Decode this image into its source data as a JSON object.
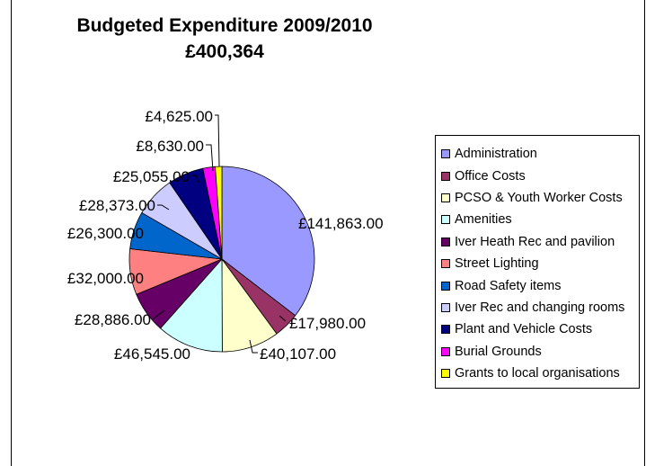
{
  "title": {
    "line1": "Budgeted Expenditure 2009/2010",
    "line2": "£400,364"
  },
  "chart_data": {
    "type": "pie",
    "title": "Budgeted Expenditure 2009/2010 £400,364",
    "legend_position": "right",
    "slices": [
      {
        "name": "Administration",
        "value": 141863.0,
        "label": "£141,863.00",
        "color": "#9999ff"
      },
      {
        "name": "Office Costs",
        "value": 17980.0,
        "label": "£17,980.00",
        "color": "#993366"
      },
      {
        "name": "PCSO & Youth Worker Costs",
        "value": 40107.0,
        "label": "£40,107.00",
        "color": "#ffffcc"
      },
      {
        "name": "Amenities",
        "value": 46545.0,
        "label": "£46,545.00",
        "color": "#ccffff"
      },
      {
        "name": "Iver Heath Rec and pavilion",
        "value": 28886.0,
        "label": "£28,886.00",
        "color": "#660066"
      },
      {
        "name": "Street Lighting",
        "value": 32000.0,
        "label": "£32,000.00",
        "color": "#ff8080"
      },
      {
        "name": "Road Safety items",
        "value": 26300.0,
        "label": "£26,300.00",
        "color": "#0066cc"
      },
      {
        "name": "Iver Rec and changing rooms",
        "value": 28373.0,
        "label": "£28,373.00",
        "color": "#ccccff"
      },
      {
        "name": "Plant and Vehicle Costs",
        "value": 25055.0,
        "label": "£25,055.00",
        "color": "#000080"
      },
      {
        "name": "Burial Grounds",
        "value": 8630.0,
        "label": "£8,630.00",
        "color": "#ff00ff"
      },
      {
        "name": "Grants to local organisations",
        "value": 4625.0,
        "label": "£4,625.00",
        "color": "#ffff00"
      }
    ]
  }
}
